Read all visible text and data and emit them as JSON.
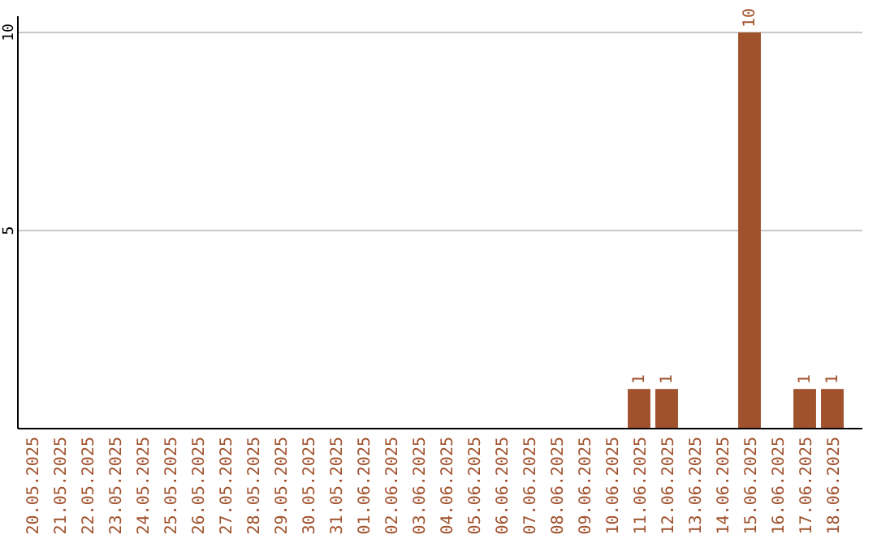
{
  "chart_data": {
    "type": "bar",
    "categories": [
      "20.05.2025",
      "21.05.2025",
      "22.05.2025",
      "23.05.2025",
      "24.05.2025",
      "25.05.2025",
      "26.05.2025",
      "27.05.2025",
      "28.05.2025",
      "29.05.2025",
      "30.05.2025",
      "31.05.2025",
      "01.06.2025",
      "02.06.2025",
      "03.06.2025",
      "04.06.2025",
      "05.06.2025",
      "06.06.2025",
      "07.06.2025",
      "08.06.2025",
      "09.06.2025",
      "10.06.2025",
      "11.06.2025",
      "12.06.2025",
      "13.06.2025",
      "14.06.2025",
      "15.06.2025",
      "16.06.2025",
      "17.06.2025",
      "18.06.2025"
    ],
    "values": [
      0,
      0,
      0,
      0,
      0,
      0,
      0,
      0,
      0,
      0,
      0,
      0,
      0,
      0,
      0,
      0,
      0,
      0,
      0,
      0,
      0,
      0,
      1,
      1,
      0,
      0,
      10,
      0,
      1,
      1
    ],
    "value_labels": [
      null,
      null,
      null,
      null,
      null,
      null,
      null,
      null,
      null,
      null,
      null,
      null,
      null,
      null,
      null,
      null,
      null,
      null,
      null,
      null,
      null,
      null,
      "1",
      "1",
      null,
      null,
      "10",
      null,
      "1",
      "1"
    ],
    "color": "#a0522d",
    "ylim": [
      0,
      10
    ],
    "yticks": [
      5,
      10
    ],
    "grid": "y"
  }
}
